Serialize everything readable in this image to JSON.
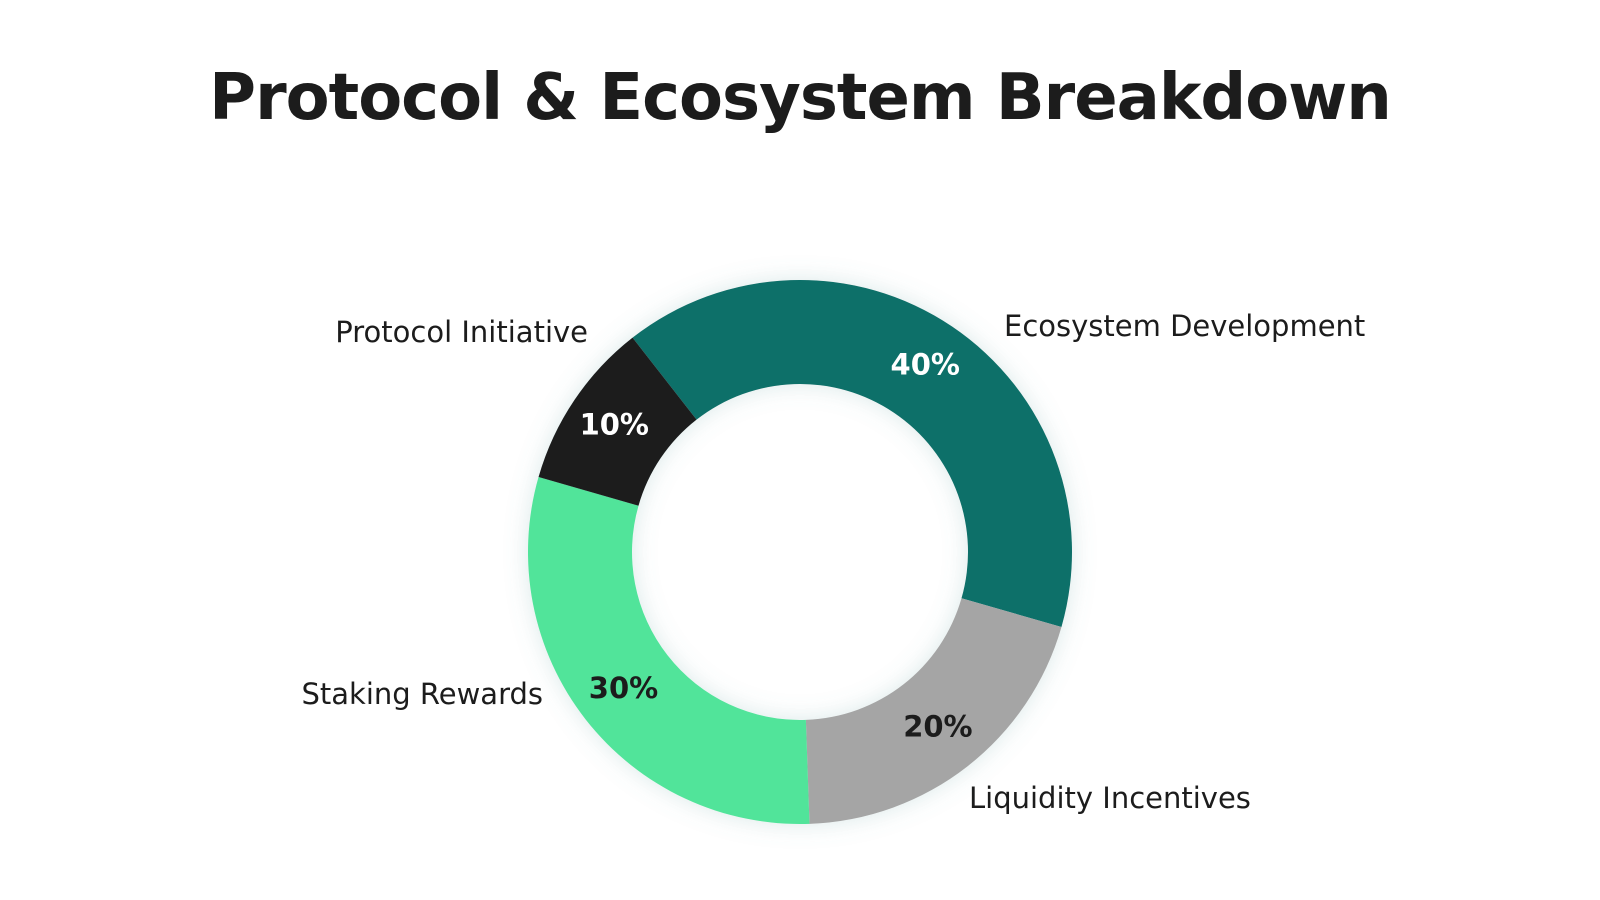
{
  "title": "Protocol & Ecosystem Breakdown",
  "chart_data": {
    "type": "pie",
    "title": "Protocol & Ecosystem Breakdown",
    "donut": true,
    "slices": [
      {
        "label": "Ecosystem Development",
        "value": 40,
        "value_label": "40%",
        "color": "#0a6f69",
        "text_color": "#ffffff"
      },
      {
        "label": "Liquidity Incentives",
        "value": 20,
        "value_label": "20%",
        "color": "#a5a5a5",
        "text_color": "#1c1c1c"
      },
      {
        "label": "Staking Rewards",
        "value": 30,
        "value_label": "30%",
        "color": "#51e49a",
        "text_color": "#1c1c1c"
      },
      {
        "label": "Protocol Initiative",
        "value": 10,
        "value_label": "10%",
        "color": "#1c1c1c",
        "text_color": "#ffffff"
      }
    ]
  }
}
